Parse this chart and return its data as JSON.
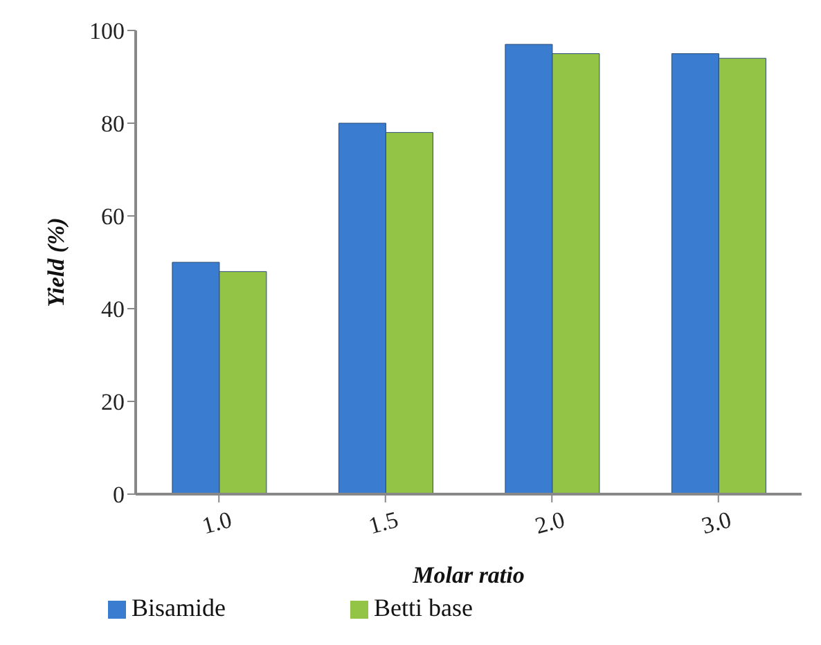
{
  "chart_data": {
    "type": "bar",
    "xlabel": "Molar ratio",
    "ylabel": "Yield (%)",
    "categories": [
      "1.0",
      "1.5",
      "2.0",
      "3.0"
    ],
    "series": [
      {
        "name": "Bisamide",
        "color": "#3a7cd0",
        "values": [
          50,
          80,
          97,
          95
        ]
      },
      {
        "name": "Betti base",
        "color": "#93c446",
        "values": [
          48,
          78,
          95,
          94
        ]
      }
    ],
    "ylim": [
      0,
      100
    ],
    "yticks": [
      0,
      20,
      40,
      60,
      80,
      100
    ],
    "grid": false,
    "legend": "bottom left"
  }
}
